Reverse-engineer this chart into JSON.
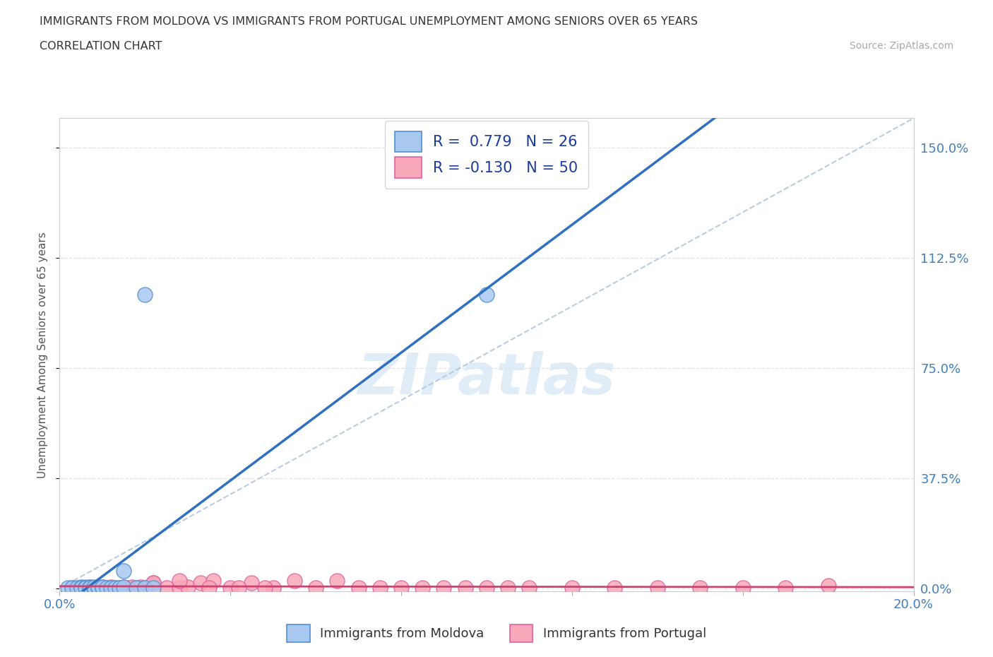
{
  "title_line1": "IMMIGRANTS FROM MOLDOVA VS IMMIGRANTS FROM PORTUGAL UNEMPLOYMENT AMONG SENIORS OVER 65 YEARS",
  "title_line2": "CORRELATION CHART",
  "source_text": "Source: ZipAtlas.com",
  "ylabel": "Unemployment Among Seniors over 65 years",
  "xlim": [
    0.0,
    0.2
  ],
  "ylim": [
    -0.01,
    1.6
  ],
  "yticks": [
    0.0,
    0.375,
    0.75,
    1.125,
    1.5
  ],
  "ytick_labels": [
    "0.0%",
    "37.5%",
    "75.0%",
    "112.5%",
    "150.0%"
  ],
  "xtick_positions": [
    0.0,
    0.04,
    0.08,
    0.12,
    0.16,
    0.2
  ],
  "xleft_label": "0.0%",
  "xright_label": "20.0%",
  "moldova_color": "#a8c8f0",
  "portugal_color": "#f8a8b8",
  "moldova_edge": "#5090d0",
  "portugal_edge": "#e060a0",
  "moldova_R": 0.779,
  "moldova_N": 26,
  "portugal_R": -0.13,
  "portugal_N": 50,
  "regression_blue_color": "#3070c0",
  "regression_pink_color": "#d04070",
  "diagonal_color": "#b0c8e0",
  "watermark_text": "ZIPatlas",
  "watermark_color": "#c8ddf0",
  "moldova_scatter_x": [
    0.002,
    0.003,
    0.004,
    0.005,
    0.005,
    0.006,
    0.006,
    0.007,
    0.007,
    0.008,
    0.008,
    0.009,
    0.009,
    0.01,
    0.01,
    0.011,
    0.012,
    0.013,
    0.014,
    0.015,
    0.015,
    0.018,
    0.02,
    0.022,
    0.02,
    0.1
  ],
  "moldova_scatter_y": [
    0.002,
    0.003,
    0.003,
    0.004,
    0.003,
    0.004,
    0.003,
    0.004,
    0.003,
    0.003,
    0.004,
    0.003,
    0.004,
    0.003,
    0.004,
    0.003,
    0.003,
    0.003,
    0.003,
    0.004,
    0.06,
    0.003,
    0.003,
    0.003,
    1.0,
    1.0
  ],
  "portugal_scatter_x": [
    0.003,
    0.005,
    0.006,
    0.007,
    0.008,
    0.009,
    0.01,
    0.011,
    0.012,
    0.013,
    0.014,
    0.015,
    0.016,
    0.017,
    0.018,
    0.019,
    0.02,
    0.022,
    0.025,
    0.028,
    0.03,
    0.033,
    0.036,
    0.04,
    0.045,
    0.05,
    0.055,
    0.06,
    0.065,
    0.07,
    0.075,
    0.08,
    0.085,
    0.09,
    0.095,
    0.1,
    0.105,
    0.11,
    0.12,
    0.13,
    0.14,
    0.15,
    0.16,
    0.17,
    0.18,
    0.022,
    0.028,
    0.035,
    0.042,
    0.048
  ],
  "portugal_scatter_y": [
    0.003,
    0.003,
    0.003,
    0.004,
    0.003,
    0.003,
    0.004,
    0.003,
    0.004,
    0.003,
    0.003,
    0.004,
    0.003,
    0.004,
    0.003,
    0.004,
    0.003,
    0.02,
    0.003,
    0.003,
    0.004,
    0.02,
    0.025,
    0.003,
    0.02,
    0.003,
    0.025,
    0.003,
    0.025,
    0.003,
    0.003,
    0.003,
    0.003,
    0.003,
    0.003,
    0.003,
    0.003,
    0.003,
    0.003,
    0.003,
    0.003,
    0.003,
    0.003,
    0.003,
    0.01,
    0.02,
    0.025,
    0.003,
    0.003,
    0.003
  ]
}
